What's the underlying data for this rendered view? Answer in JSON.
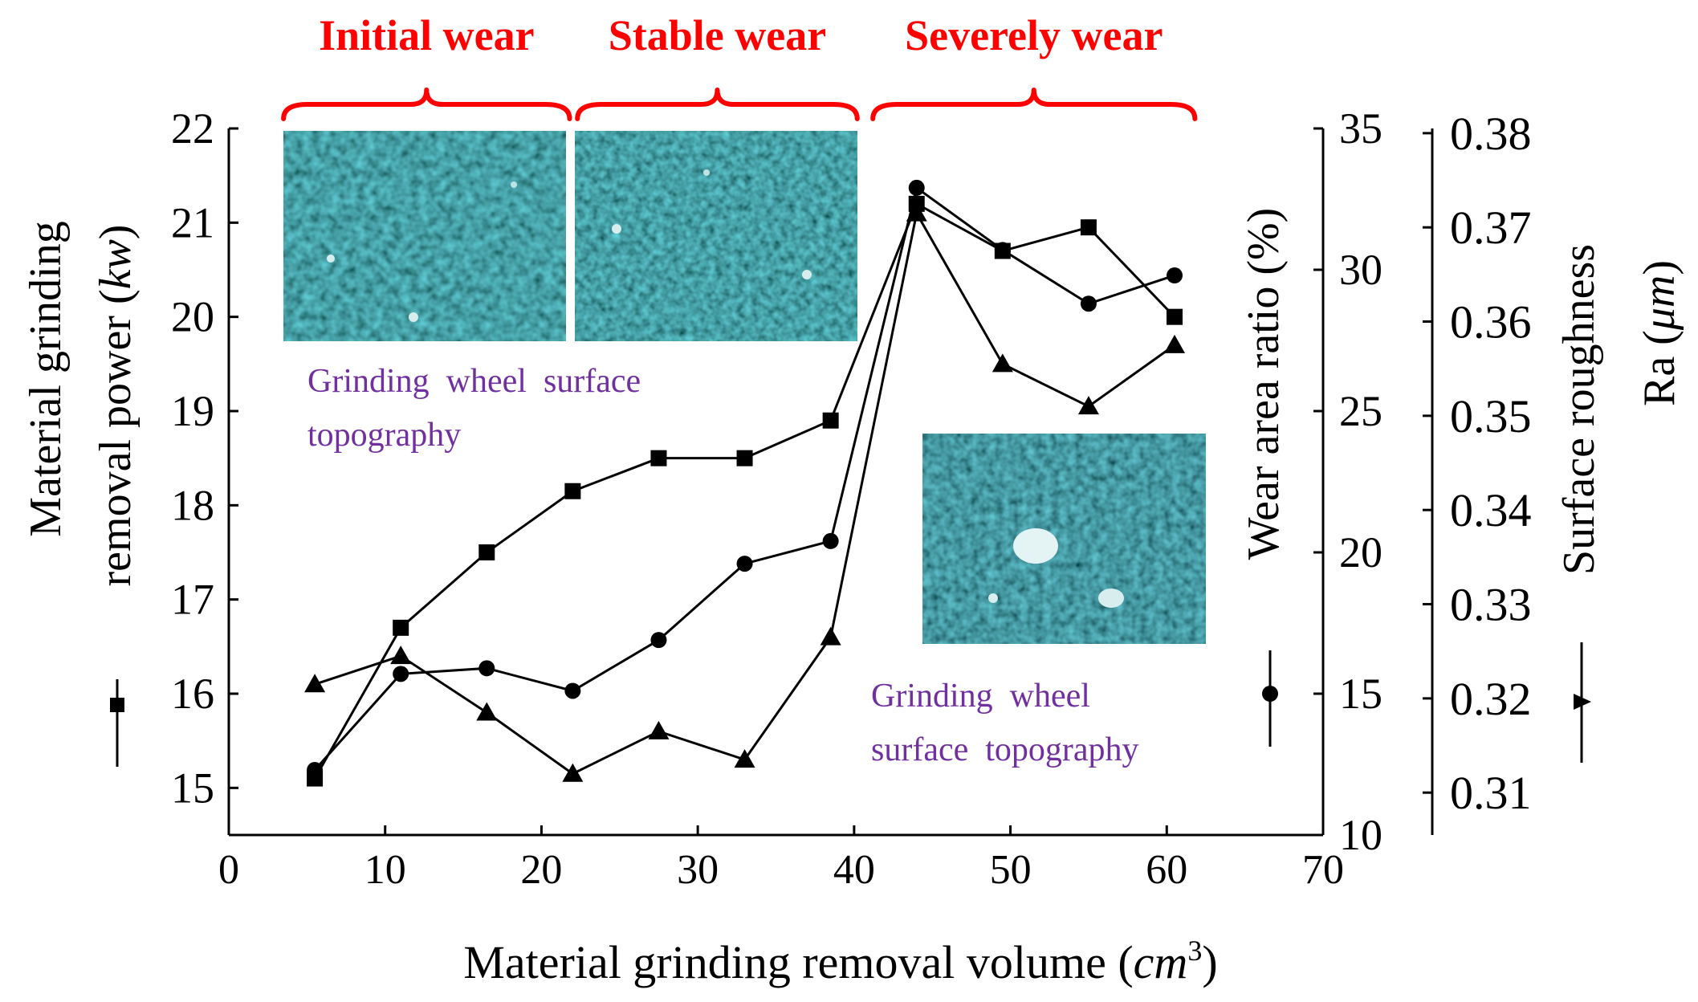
{
  "chart_data": {
    "type": "line",
    "xlabel": "Material grinding removal volume (cm³)",
    "xlabel_parts": {
      "text": "Material grinding removal volume (",
      "unit": "cm",
      "exp": "3",
      "close": ")"
    },
    "x_range": [
      0,
      70
    ],
    "x_ticks": [
      "0",
      "10",
      "20",
      "30",
      "40",
      "50",
      "60",
      "70"
    ],
    "axes": {
      "left": {
        "label_line1": "Material grinding",
        "label_line2": "removal power (",
        "label_unit": "kw",
        "label_close": ")",
        "range": [
          14.5,
          22
        ],
        "ticks": [
          "15",
          "16",
          "17",
          "18",
          "19",
          "20",
          "21",
          "22"
        ]
      },
      "right1": {
        "label_text": "Wear area ratio (%)",
        "range": [
          10,
          35
        ],
        "ticks": [
          "10",
          "15",
          "20",
          "25",
          "30",
          "35"
        ]
      },
      "right2": {
        "label_line1": "Surface roughness",
        "label_line2_text": "Ra (",
        "label_unit": "μm",
        "label_close": ")",
        "range": [
          0.3055,
          0.3805
        ],
        "ticks": [
          "0.31",
          "0.32",
          "0.33",
          "0.34",
          "0.35",
          "0.36",
          "0.37",
          "0.38"
        ]
      }
    },
    "series": [
      {
        "name": "Material grinding removal power (kw)",
        "axis": "left",
        "marker": "square",
        "x": [
          5.5,
          11,
          16.5,
          22,
          27.5,
          33,
          38.5,
          44,
          49.5,
          55,
          60.5
        ],
        "values": [
          15.1,
          16.7,
          17.5,
          18.15,
          18.5,
          18.5,
          18.9,
          21.2,
          20.7,
          20.95,
          20.0
        ]
      },
      {
        "name": "Wear area ratio (%)",
        "axis": "right1",
        "marker": "circle",
        "x": [
          5.5,
          11,
          16.5,
          22,
          27.5,
          33,
          38.5,
          44,
          49.5,
          55,
          60.5
        ],
        "values": [
          12.3,
          15.7,
          15.9,
          15.1,
          16.9,
          19.6,
          20.4,
          32.9,
          30.7,
          28.8,
          29.8
        ]
      },
      {
        "name": "Surface roughness Ra (μm)",
        "axis": "right2",
        "marker": "triangle",
        "x": [
          5.5,
          11,
          16.5,
          22,
          27.5,
          33,
          38.5,
          44,
          49.5,
          55,
          60.5
        ],
        "values": [
          0.3215,
          0.3245,
          0.3185,
          0.312,
          0.3165,
          0.3135,
          0.3265,
          0.3715,
          0.3555,
          0.351,
          0.3575
        ]
      }
    ],
    "stages": [
      {
        "label": "Initial wear",
        "x_start": 3.5,
        "x_end": 21.8
      },
      {
        "label": "Stable wear",
        "x_start": 22.3,
        "x_end": 40.2
      },
      {
        "label": "Severely wear",
        "x_start": 41.2,
        "x_end": 61.8
      }
    ],
    "annotations": [
      {
        "id": "annotation-topography-1",
        "line1": "Grinding  wheel  surface",
        "line2": "topography"
      },
      {
        "id": "annotation-topography-2",
        "line1": "Grinding  wheel",
        "line2": "surface  topography"
      }
    ]
  },
  "colors": {
    "stage": "#ff0000",
    "annotation": "#7030a0",
    "axis": "#000000",
    "series": "#000000",
    "micrograph_base": "#0d2630",
    "micrograph_grain": "#2aa6a8",
    "micrograph_bright": "#d8eeee"
  }
}
